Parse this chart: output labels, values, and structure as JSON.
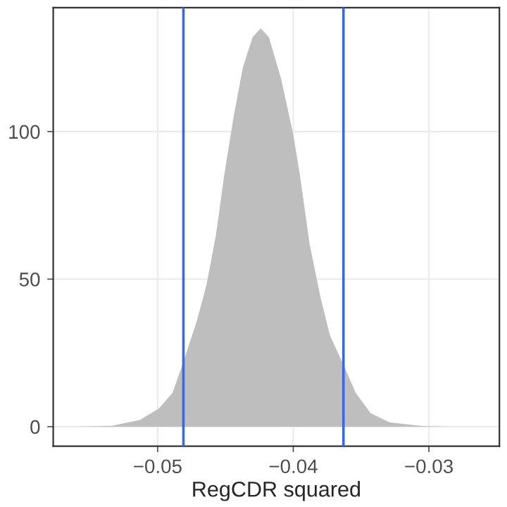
{
  "chart_data": {
    "type": "area",
    "xlabel": "RegCDR squared",
    "x": [
      -0.0561,
      -0.0534,
      -0.0513,
      -0.0499,
      -0.0489,
      -0.0481,
      -0.0471,
      -0.0464,
      -0.0457,
      -0.0451,
      -0.0444,
      -0.0437,
      -0.043,
      -0.0424,
      -0.0418,
      -0.0409,
      -0.04,
      -0.0395,
      -0.0388,
      -0.038,
      -0.0373,
      -0.0363,
      -0.0354,
      -0.0343,
      -0.0329,
      -0.0305,
      -0.0284
    ],
    "series": [
      {
        "color": "#bebebe",
        "values": [
          0,
          0.3,
          2.3,
          6.2,
          11.5,
          22,
          36,
          48,
          65,
          85,
          105,
          122,
          132,
          135,
          132,
          118,
          99,
          85,
          62,
          44,
          31,
          21,
          11.5,
          4.6,
          1.5,
          0.2,
          0
        ]
      }
    ],
    "xlim": [
      -0.0577,
      -0.0248
    ],
    "xticks": [
      {
        "value": -0.05,
        "label": "−0.05"
      },
      {
        "value": -0.04,
        "label": "−0.04"
      },
      {
        "value": -0.03,
        "label": "−0.03"
      }
    ],
    "ylim": [
      -6.6,
      142
    ],
    "yticks": [
      0,
      50,
      100
    ],
    "ref_lines": [
      {
        "axis": "x",
        "value": -0.0481,
        "color": "#3b68e6"
      },
      {
        "axis": "x",
        "value": -0.0363,
        "color": "#3b68e6"
      }
    ],
    "grid": true,
    "legend": false
  }
}
